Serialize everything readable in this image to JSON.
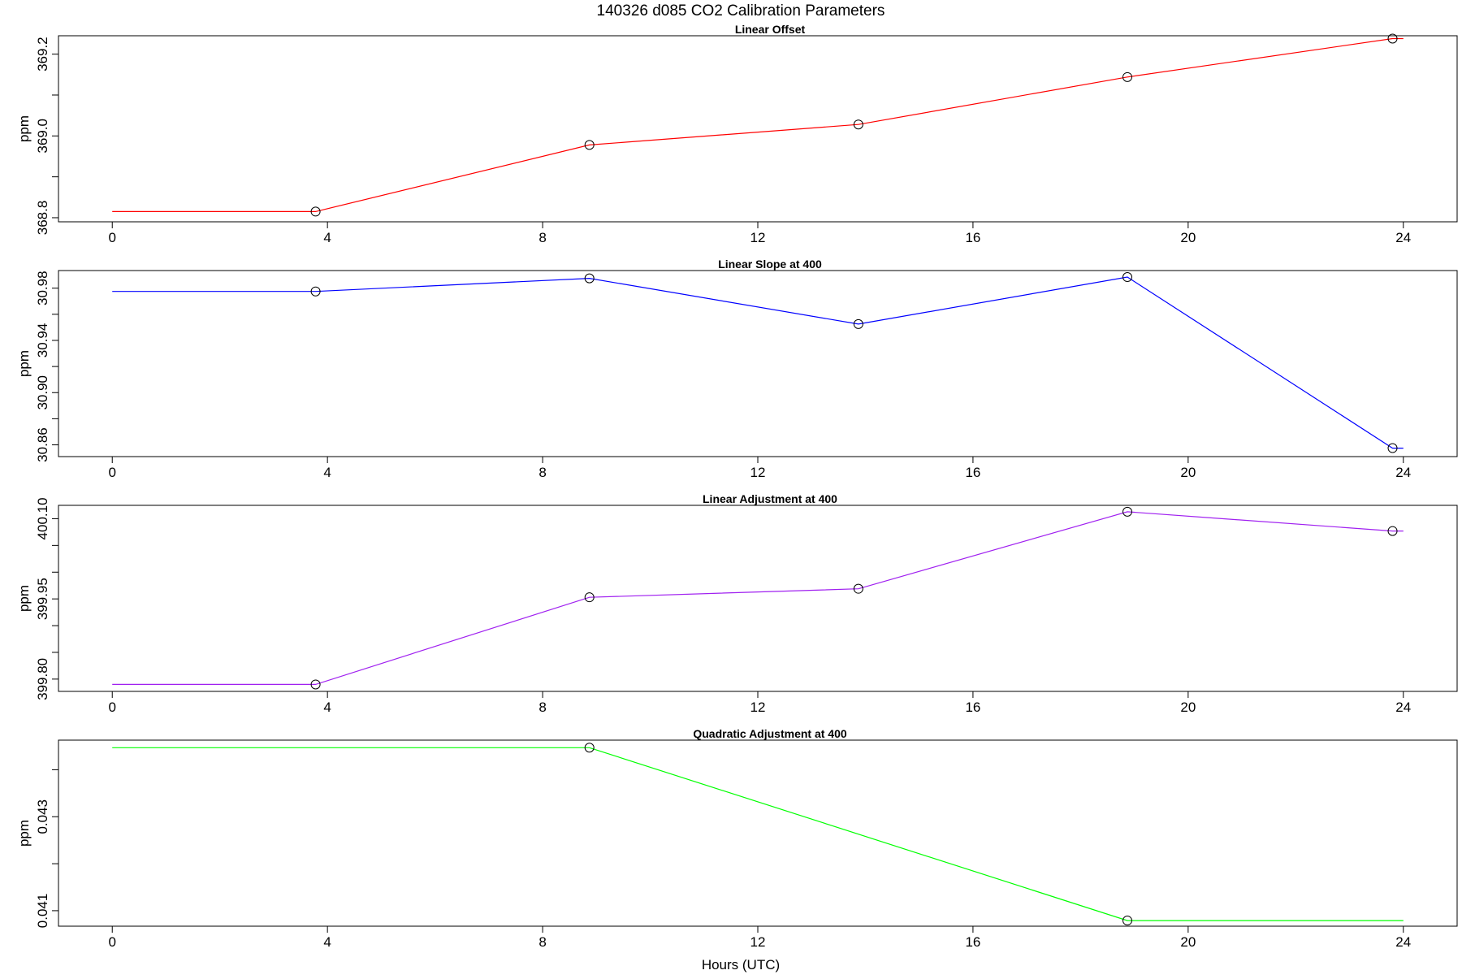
{
  "figure": {
    "title": "140326   d085   CO2 Calibration Parameters",
    "xlabel": "Hours (UTC)"
  },
  "chart_data": [
    {
      "type": "line",
      "title": "Linear Offset",
      "xlabel": "",
      "ylabel": "ppm",
      "xlim": [
        -1,
        25
      ],
      "ylim": [
        368.79,
        369.245
      ],
      "xticks": [
        0,
        4,
        8,
        12,
        16,
        20,
        24
      ],
      "yticks_major": [
        368.8,
        369.0,
        369.2
      ],
      "ytick_labels": [
        "368.8",
        "369.0",
        "369.2"
      ],
      "yticks_minor": [
        368.9,
        369.1
      ],
      "color": "#ff0000",
      "x": [
        0,
        3.78,
        8.87,
        13.87,
        18.87,
        23.8,
        24
      ],
      "y": [
        368.815,
        368.815,
        368.978,
        369.028,
        369.144,
        369.238,
        369.238
      ],
      "markers_x": [
        3.78,
        8.87,
        13.87,
        18.87,
        23.8
      ],
      "markers_y": [
        368.815,
        368.978,
        369.028,
        369.144,
        369.238
      ]
    },
    {
      "type": "line",
      "title": "Linear Slope at 400",
      "xlabel": "",
      "ylabel": "ppm",
      "xlim": [
        -1,
        25
      ],
      "ylim": [
        30.851,
        30.9935
      ],
      "xticks": [
        0,
        4,
        8,
        12,
        16,
        20,
        24
      ],
      "yticks_major": [
        30.86,
        30.9,
        30.94,
        30.98
      ],
      "ytick_labels": [
        "30.86",
        "30.90",
        "30.94",
        "30.98"
      ],
      "yticks_minor": [
        30.88,
        30.92,
        30.96
      ],
      "color": "#0000ff",
      "x": [
        0,
        3.78,
        8.87,
        13.87,
        18.87,
        23.8,
        24
      ],
      "y": [
        30.9775,
        30.9775,
        30.9875,
        30.9525,
        30.9885,
        30.8575,
        30.8575
      ],
      "markers_x": [
        3.78,
        8.87,
        13.87,
        18.87,
        23.8
      ],
      "markers_y": [
        30.9775,
        30.9875,
        30.9525,
        30.9885,
        30.8575
      ]
    },
    {
      "type": "line",
      "title": "Linear Adjustment at 400",
      "xlabel": "",
      "ylabel": "ppm",
      "xlim": [
        -1,
        25
      ],
      "ylim": [
        399.777,
        400.125
      ],
      "xticks": [
        0,
        4,
        8,
        12,
        16,
        20,
        24
      ],
      "yticks_major": [
        399.8,
        399.95,
        400.1
      ],
      "ytick_labels": [
        "399.80",
        "399.95",
        "400.10"
      ],
      "yticks_minor": [
        399.85,
        399.9,
        400.0,
        400.05
      ],
      "color": "#a020f0",
      "x": [
        0,
        3.78,
        8.87,
        13.87,
        18.87,
        23.8,
        24
      ],
      "y": [
        399.79,
        399.79,
        399.953,
        399.969,
        400.113,
        400.077,
        400.077
      ],
      "markers_x": [
        3.78,
        8.87,
        13.87,
        18.87,
        23.8
      ],
      "markers_y": [
        399.79,
        399.953,
        399.969,
        400.113,
        400.077
      ]
    },
    {
      "type": "line",
      "title": "Quadratic Adjustment at 400",
      "xlabel": "Hours (UTC)",
      "ylabel": "ppm",
      "xlim": [
        -1,
        25
      ],
      "ylim": [
        0.04067,
        0.04463
      ],
      "xticks": [
        0,
        4,
        8,
        12,
        16,
        20,
        24
      ],
      "yticks_major": [
        0.041,
        0.043
      ],
      "ytick_labels": [
        "0.041",
        "0.043"
      ],
      "yticks_minor": [
        0.042,
        0.044
      ],
      "color": "#00ff00",
      "x": [
        0,
        8.87,
        18.87,
        24
      ],
      "y": [
        0.04447,
        0.04447,
        0.04079,
        0.04079
      ],
      "markers_x": [
        8.87,
        18.87
      ],
      "markers_y": [
        0.04447,
        0.04079
      ]
    }
  ]
}
